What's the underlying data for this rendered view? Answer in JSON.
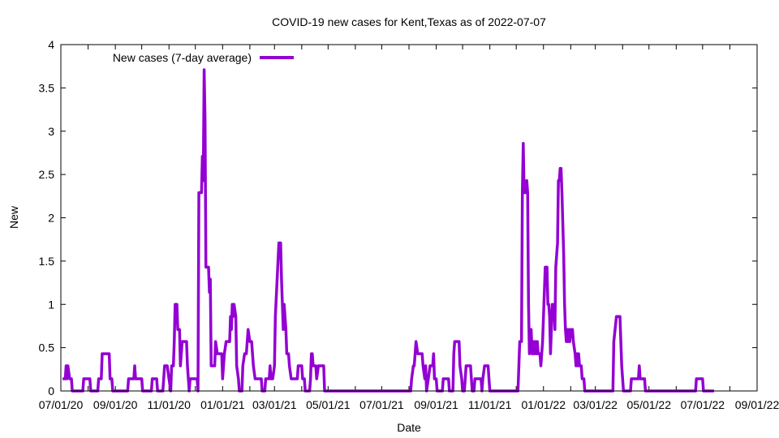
{
  "chart_data": {
    "type": "line",
    "title": "COVID-19 new cases for Kent,Texas as of 2022-07-07",
    "xlabel": "Date",
    "ylabel": "New",
    "x_range": [
      "2020-07-01",
      "2022-09-01"
    ],
    "ylim": [
      0,
      4
    ],
    "grid": false,
    "legend_position": "top-left",
    "x_ticks": [
      "07/01/20",
      "09/01/20",
      "11/01/20",
      "01/01/21",
      "03/01/21",
      "05/01/21",
      "07/01/21",
      "09/01/21",
      "11/01/21",
      "01/01/22",
      "03/01/22",
      "05/01/22",
      "07/01/22",
      "09/01/22"
    ],
    "y_ticks": [
      "0",
      "0.5",
      "1",
      "1.5",
      "2",
      "2.5",
      "3",
      "3.5",
      "4"
    ],
    "series": [
      {
        "name": "New cases (7-day average)",
        "color": "#9400d3",
        "points": [
          [
            "2020-07-03",
            0.14
          ],
          [
            "2020-07-06",
            0.14
          ],
          [
            "2020-07-07",
            0.29
          ],
          [
            "2020-07-08",
            0.14
          ],
          [
            "2020-07-09",
            0.29
          ],
          [
            "2020-07-11",
            0.14
          ],
          [
            "2020-07-13",
            0.14
          ],
          [
            "2020-07-14",
            0
          ],
          [
            "2020-07-26",
            0
          ],
          [
            "2020-07-27",
            0.14
          ],
          [
            "2020-08-03",
            0.14
          ],
          [
            "2020-08-04",
            0
          ],
          [
            "2020-08-12",
            0
          ],
          [
            "2020-08-13",
            0.14
          ],
          [
            "2020-08-16",
            0.14
          ],
          [
            "2020-08-17",
            0.43
          ],
          [
            "2020-08-25",
            0.43
          ],
          [
            "2020-08-26",
            0.14
          ],
          [
            "2020-08-28",
            0.14
          ],
          [
            "2020-08-29",
            0
          ],
          [
            "2020-09-15",
            0
          ],
          [
            "2020-09-16",
            0.14
          ],
          [
            "2020-09-22",
            0.14
          ],
          [
            "2020-09-23",
            0.29
          ],
          [
            "2020-09-24",
            0.14
          ],
          [
            "2020-10-01",
            0.14
          ],
          [
            "2020-10-02",
            0
          ],
          [
            "2020-10-12",
            0
          ],
          [
            "2020-10-13",
            0.14
          ],
          [
            "2020-10-18",
            0.14
          ],
          [
            "2020-10-19",
            0
          ],
          [
            "2020-10-25",
            0
          ],
          [
            "2020-10-26",
            0.14
          ],
          [
            "2020-10-27",
            0.29
          ],
          [
            "2020-10-30",
            0.29
          ],
          [
            "2020-11-01",
            0.14
          ],
          [
            "2020-11-03",
            0
          ],
          [
            "2020-11-04",
            0.29
          ],
          [
            "2020-11-06",
            0.29
          ],
          [
            "2020-11-07",
            0.57
          ],
          [
            "2020-11-08",
            1
          ],
          [
            "2020-11-10",
            1
          ],
          [
            "2020-11-11",
            0.71
          ],
          [
            "2020-11-13",
            0.71
          ],
          [
            "2020-11-14",
            0.29
          ],
          [
            "2020-11-16",
            0.57
          ],
          [
            "2020-11-21",
            0.57
          ],
          [
            "2020-11-22",
            0.29
          ],
          [
            "2020-11-24",
            0
          ],
          [
            "2020-11-25",
            0.14
          ],
          [
            "2020-12-03",
            0.14
          ],
          [
            "2020-12-04",
            0
          ],
          [
            "2020-12-05",
            2.29
          ],
          [
            "2020-12-08",
            2.29
          ],
          [
            "2020-12-09",
            2.71
          ],
          [
            "2020-12-10",
            2.43
          ],
          [
            "2020-12-11",
            3.71
          ],
          [
            "2020-12-12",
            3.14
          ],
          [
            "2020-12-13",
            1.43
          ],
          [
            "2020-12-16",
            1.43
          ],
          [
            "2020-12-17",
            1.14
          ],
          [
            "2020-12-18",
            1.29
          ],
          [
            "2020-12-19",
            0.29
          ],
          [
            "2020-12-23",
            0.29
          ],
          [
            "2020-12-24",
            0.57
          ],
          [
            "2020-12-26",
            0.43
          ],
          [
            "2020-12-31",
            0.43
          ],
          [
            "2021-01-01",
            0.14
          ],
          [
            "2021-01-03",
            0.43
          ],
          [
            "2021-01-05",
            0.57
          ],
          [
            "2021-01-09",
            0.57
          ],
          [
            "2021-01-10",
            0.86
          ],
          [
            "2021-01-11",
            0.71
          ],
          [
            "2021-01-12",
            1
          ],
          [
            "2021-01-13",
            0.86
          ],
          [
            "2021-01-14",
            1
          ],
          [
            "2021-01-16",
            0.86
          ],
          [
            "2021-01-17",
            0.29
          ],
          [
            "2021-01-19",
            0.14
          ],
          [
            "2021-01-20",
            0
          ],
          [
            "2021-01-23",
            0
          ],
          [
            "2021-01-24",
            0.29
          ],
          [
            "2021-01-26",
            0.43
          ],
          [
            "2021-01-28",
            0.43
          ],
          [
            "2021-01-30",
            0.71
          ],
          [
            "2021-02-01",
            0.57
          ],
          [
            "2021-02-03",
            0.57
          ],
          [
            "2021-02-05",
            0.29
          ],
          [
            "2021-02-07",
            0.14
          ],
          [
            "2021-02-14",
            0.14
          ],
          [
            "2021-02-15",
            0
          ],
          [
            "2021-02-18",
            0
          ],
          [
            "2021-02-19",
            0.14
          ],
          [
            "2021-02-23",
            0.14
          ],
          [
            "2021-02-24",
            0.29
          ],
          [
            "2021-02-25",
            0.14
          ],
          [
            "2021-02-27",
            0.14
          ],
          [
            "2021-03-01",
            0.29
          ],
          [
            "2021-03-02",
            0.86
          ],
          [
            "2021-03-06",
            1.71
          ],
          [
            "2021-03-08",
            1.71
          ],
          [
            "2021-03-09",
            1.29
          ],
          [
            "2021-03-10",
            1
          ],
          [
            "2021-03-11",
            0.71
          ],
          [
            "2021-03-12",
            1
          ],
          [
            "2021-03-14",
            0.71
          ],
          [
            "2021-03-15",
            0.43
          ],
          [
            "2021-03-17",
            0.43
          ],
          [
            "2021-03-18",
            0.29
          ],
          [
            "2021-03-20",
            0.14
          ],
          [
            "2021-03-27",
            0.14
          ],
          [
            "2021-03-28",
            0.29
          ],
          [
            "2021-04-01",
            0.29
          ],
          [
            "2021-04-02",
            0.14
          ],
          [
            "2021-04-04",
            0.14
          ],
          [
            "2021-04-05",
            0
          ],
          [
            "2021-04-10",
            0
          ],
          [
            "2021-04-11",
            0.14
          ],
          [
            "2021-04-12",
            0.43
          ],
          [
            "2021-04-13",
            0.43
          ],
          [
            "2021-04-14",
            0.29
          ],
          [
            "2021-04-17",
            0.29
          ],
          [
            "2021-04-18",
            0.14
          ],
          [
            "2021-04-20",
            0.29
          ],
          [
            "2021-04-26",
            0.29
          ],
          [
            "2021-04-27",
            0
          ],
          [
            "2021-08-03",
            0
          ],
          [
            "2021-08-04",
            0.14
          ],
          [
            "2021-08-06",
            0.29
          ],
          [
            "2021-08-07",
            0.29
          ],
          [
            "2021-08-08",
            0.43
          ],
          [
            "2021-08-09",
            0.57
          ],
          [
            "2021-08-11",
            0.43
          ],
          [
            "2021-08-16",
            0.43
          ],
          [
            "2021-08-17",
            0.29
          ],
          [
            "2021-08-19",
            0.14
          ],
          [
            "2021-08-20",
            0.29
          ],
          [
            "2021-08-21",
            0
          ],
          [
            "2021-08-23",
            0.14
          ],
          [
            "2021-08-25",
            0.29
          ],
          [
            "2021-08-28",
            0.29
          ],
          [
            "2021-08-29",
            0.43
          ],
          [
            "2021-08-30",
            0.14
          ],
          [
            "2021-09-01",
            0.14
          ],
          [
            "2021-09-02",
            0
          ],
          [
            "2021-09-08",
            0
          ],
          [
            "2021-09-09",
            0.14
          ],
          [
            "2021-09-15",
            0.14
          ],
          [
            "2021-09-16",
            0
          ],
          [
            "2021-09-20",
            0
          ],
          [
            "2021-09-21",
            0.43
          ],
          [
            "2021-09-22",
            0.57
          ],
          [
            "2021-09-27",
            0.57
          ],
          [
            "2021-09-28",
            0.29
          ],
          [
            "2021-09-30",
            0.14
          ],
          [
            "2021-10-01",
            0
          ],
          [
            "2021-10-03",
            0
          ],
          [
            "2021-10-04",
            0.14
          ],
          [
            "2021-10-05",
            0.29
          ],
          [
            "2021-10-10",
            0.29
          ],
          [
            "2021-10-11",
            0.14
          ],
          [
            "2021-10-12",
            0
          ],
          [
            "2021-10-14",
            0
          ],
          [
            "2021-10-15",
            0.14
          ],
          [
            "2021-10-22",
            0.14
          ],
          [
            "2021-10-23",
            0
          ],
          [
            "2021-10-24",
            0.14
          ],
          [
            "2021-10-26",
            0.29
          ],
          [
            "2021-10-30",
            0.29
          ],
          [
            "2021-10-31",
            0.14
          ],
          [
            "2021-11-01",
            0
          ],
          [
            "2021-12-03",
            0
          ],
          [
            "2021-12-04",
            0.29
          ],
          [
            "2021-12-05",
            0.57
          ],
          [
            "2021-12-07",
            0.57
          ],
          [
            "2021-12-08",
            2.29
          ],
          [
            "2021-12-09",
            2.86
          ],
          [
            "2021-12-10",
            2.29
          ],
          [
            "2021-12-12",
            2.29
          ],
          [
            "2021-12-13",
            2.43
          ],
          [
            "2021-12-14",
            2.29
          ],
          [
            "2021-12-15",
            1
          ],
          [
            "2021-12-16",
            0.43
          ],
          [
            "2021-12-17",
            0.57
          ],
          [
            "2021-12-18",
            0.71
          ],
          [
            "2021-12-19",
            0.43
          ],
          [
            "2021-12-20",
            0.43
          ],
          [
            "2021-12-21",
            0.57
          ],
          [
            "2021-12-22",
            0.43
          ],
          [
            "2021-12-23",
            0.57
          ],
          [
            "2021-12-24",
            0.43
          ],
          [
            "2021-12-25",
            0.57
          ],
          [
            "2021-12-26",
            0.43
          ],
          [
            "2021-12-28",
            0.43
          ],
          [
            "2021-12-29",
            0.29
          ],
          [
            "2021-12-31",
            0.57
          ],
          [
            "2022-01-02",
            1.14
          ],
          [
            "2022-01-03",
            1.43
          ],
          [
            "2022-01-05",
            1.43
          ],
          [
            "2022-01-06",
            1
          ],
          [
            "2022-01-07",
            1
          ],
          [
            "2022-01-08",
            0.86
          ],
          [
            "2022-01-09",
            0.43
          ],
          [
            "2022-01-10",
            0.71
          ],
          [
            "2022-01-11",
            1
          ],
          [
            "2022-01-12",
            0.86
          ],
          [
            "2022-01-13",
            1
          ],
          [
            "2022-01-14",
            0.71
          ],
          [
            "2022-01-15",
            1.43
          ],
          [
            "2022-01-16",
            1.57
          ],
          [
            "2022-01-17",
            1.71
          ],
          [
            "2022-01-18",
            2.43
          ],
          [
            "2022-01-19",
            2.43
          ],
          [
            "2022-01-20",
            2.57
          ],
          [
            "2022-01-21",
            2.57
          ],
          [
            "2022-01-22",
            2.29
          ],
          [
            "2022-01-24",
            1.57
          ],
          [
            "2022-01-25",
            1
          ],
          [
            "2022-01-26",
            0.71
          ],
          [
            "2022-01-27",
            0.57
          ],
          [
            "2022-01-28",
            0.71
          ],
          [
            "2022-01-29",
            0.57
          ],
          [
            "2022-01-30",
            0.71
          ],
          [
            "2022-01-31",
            0.57
          ],
          [
            "2022-02-01",
            0.71
          ],
          [
            "2022-02-03",
            0.71
          ],
          [
            "2022-02-04",
            0.57
          ],
          [
            "2022-02-06",
            0.43
          ],
          [
            "2022-02-07",
            0.29
          ],
          [
            "2022-02-08",
            0.43
          ],
          [
            "2022-02-09",
            0.29
          ],
          [
            "2022-02-10",
            0.43
          ],
          [
            "2022-02-11",
            0.29
          ],
          [
            "2022-02-13",
            0.29
          ],
          [
            "2022-02-14",
            0.14
          ],
          [
            "2022-02-16",
            0.14
          ],
          [
            "2022-02-17",
            0
          ],
          [
            "2022-03-21",
            0
          ],
          [
            "2022-03-22",
            0.57
          ],
          [
            "2022-03-25",
            0.86
          ],
          [
            "2022-03-29",
            0.86
          ],
          [
            "2022-03-31",
            0.29
          ],
          [
            "2022-04-02",
            0
          ],
          [
            "2022-04-10",
            0
          ],
          [
            "2022-04-11",
            0.14
          ],
          [
            "2022-04-19",
            0.14
          ],
          [
            "2022-04-20",
            0.29
          ],
          [
            "2022-04-21",
            0.14
          ],
          [
            "2022-04-26",
            0.14
          ],
          [
            "2022-04-27",
            0
          ],
          [
            "2022-06-23",
            0
          ],
          [
            "2022-06-24",
            0.14
          ],
          [
            "2022-07-01",
            0.14
          ],
          [
            "2022-07-02",
            0
          ],
          [
            "2022-07-14",
            0
          ]
        ]
      }
    ]
  }
}
